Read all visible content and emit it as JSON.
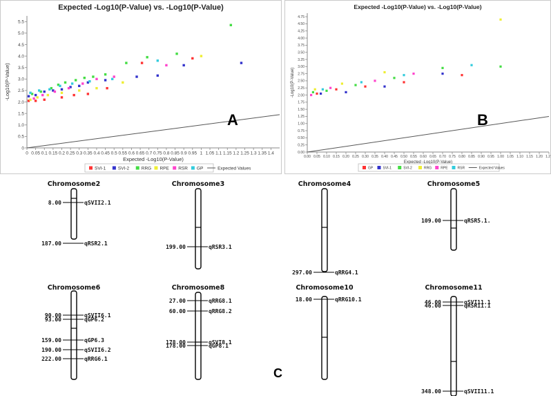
{
  "chart_data": [
    {
      "type": "scatter",
      "title": "Expected -Log10(P-Value) vs. -Log10(P-Value)",
      "panel_letter": "A",
      "xlabel": "Expected -Log10(P-Value)",
      "ylabel": "-Log10(P-Value)",
      "xlim": [
        0,
        1.45
      ],
      "ylim": [
        0,
        5.75
      ],
      "xticks": [
        "0",
        "0.05",
        "0.1",
        "0.15",
        "0.2",
        "0.25",
        "0.3",
        "0.35",
        "0.4",
        "0.45",
        "0.5",
        "0.55",
        "0.6",
        "0.65",
        "0.7",
        "0.75",
        "0.8",
        "0.85",
        "0.9",
        "0.95",
        "1",
        "1.05",
        "1.1",
        "1.15",
        "1.2",
        "1.25",
        "1.3",
        "1.35",
        "1.4"
      ],
      "yticks": [
        "0",
        "0.5",
        "1.0",
        "1.5",
        "2.0",
        "2.5",
        "3.0",
        "3.5",
        "4.0",
        "4.5",
        "5.0",
        "5.5"
      ],
      "grid": false,
      "legend_position": "bottom",
      "series": [
        {
          "name": "SVI-1",
          "color": "#ff3333",
          "points": [
            [
              0.01,
              2.05
            ],
            [
              0.05,
              2.05
            ],
            [
              0.1,
              2.1
            ],
            [
              0.2,
              2.2
            ],
            [
              0.27,
              2.3
            ],
            [
              0.35,
              2.35
            ],
            [
              0.46,
              2.6
            ],
            [
              0.66,
              3.7
            ],
            [
              0.95,
              3.9
            ]
          ]
        },
        {
          "name": "SVI-2",
          "color": "#3333cc",
          "points": [
            [
              0.01,
              2.25
            ],
            [
              0.05,
              2.3
            ],
            [
              0.1,
              2.45
            ],
            [
              0.15,
              2.5
            ],
            [
              0.2,
              2.55
            ],
            [
              0.25,
              2.65
            ],
            [
              0.3,
              2.7
            ],
            [
              0.35,
              2.85
            ],
            [
              0.45,
              2.95
            ],
            [
              0.63,
              3.1
            ],
            [
              0.75,
              3.15
            ],
            [
              0.9,
              3.6
            ],
            [
              1.23,
              3.7
            ]
          ]
        },
        {
          "name": "RRG",
          "color": "#44dd44",
          "points": [
            [
              0.03,
              2.35
            ],
            [
              0.08,
              2.45
            ],
            [
              0.14,
              2.6
            ],
            [
              0.18,
              2.75
            ],
            [
              0.22,
              2.85
            ],
            [
              0.28,
              2.95
            ],
            [
              0.33,
              3.05
            ],
            [
              0.38,
              3.1
            ],
            [
              0.45,
              3.2
            ],
            [
              0.57,
              3.7
            ],
            [
              0.69,
              3.95
            ],
            [
              0.86,
              4.1
            ],
            [
              1.17,
              5.35
            ]
          ]
        },
        {
          "name": "RPE",
          "color": "#eeee33",
          "points": [
            [
              0.02,
              2.1
            ],
            [
              0.06,
              2.2
            ],
            [
              0.12,
              2.3
            ],
            [
              0.2,
              2.4
            ],
            [
              0.3,
              2.5
            ],
            [
              0.4,
              2.6
            ],
            [
              0.55,
              2.85
            ],
            [
              1.0,
              4.0
            ]
          ]
        },
        {
          "name": "RSR",
          "color": "#ff44cc",
          "points": [
            [
              0.04,
              2.15
            ],
            [
              0.09,
              2.3
            ],
            [
              0.16,
              2.45
            ],
            [
              0.24,
              2.6
            ],
            [
              0.32,
              2.8
            ],
            [
              0.4,
              3.0
            ],
            [
              0.5,
              3.1
            ],
            [
              0.8,
              3.6
            ]
          ]
        },
        {
          "name": "GP",
          "color": "#33ccdd",
          "points": [
            [
              0.02,
              2.4
            ],
            [
              0.07,
              2.5
            ],
            [
              0.13,
              2.55
            ],
            [
              0.19,
              2.7
            ],
            [
              0.26,
              2.8
            ],
            [
              0.36,
              2.9
            ],
            [
              0.49,
              3.0
            ],
            [
              0.75,
              3.8
            ]
          ]
        },
        {
          "name": "Expected Values",
          "color": "#555555",
          "type": "line",
          "points": [
            [
              0,
              0
            ],
            [
              1.45,
              1.45
            ]
          ]
        }
      ]
    },
    {
      "type": "scatter",
      "title": "Expected -Log10(P-Value) vs. -Log10(P-Value)",
      "panel_letter": "B",
      "xlabel": "Expected -Log10(P-Value)",
      "ylabel": "-Log10(P-Value)",
      "xlim": [
        0,
        1.25
      ],
      "ylim": [
        0,
        4.875
      ],
      "xticks": [
        "0.00",
        "0.05",
        "0.10",
        "0.15",
        "0.20",
        "0.25",
        "0.30",
        "0.35",
        "0.40",
        "0.45",
        "0.50",
        "0.55",
        "0.60",
        "0.65",
        "0.70",
        "0.75",
        "0.80",
        "0.85",
        "0.90",
        "0.95",
        "1.00",
        "1.05",
        "1.10",
        "1.15",
        "1.20",
        "1.25"
      ],
      "yticks": [
        "0.00",
        "0.25",
        "0.50",
        "0.75",
        "1.00",
        "1.25",
        "1.50",
        "1.75",
        "2.00",
        "2.25",
        "2.50",
        "2.75",
        "3.00",
        "3.25",
        "3.50",
        "3.75",
        "4.00",
        "4.25",
        "4.50",
        "4.75"
      ],
      "grid": false,
      "legend_position": "bottom",
      "series": [
        {
          "name": "GP",
          "color": "#ff3333",
          "points": [
            [
              0.05,
              2.05
            ],
            [
              0.15,
              2.2
            ],
            [
              0.3,
              2.3
            ],
            [
              0.5,
              2.45
            ],
            [
              0.8,
              2.7
            ]
          ]
        },
        {
          "name": "SVI-1",
          "color": "#3333cc",
          "points": [
            [
              0.07,
              2.05
            ],
            [
              0.2,
              2.1
            ],
            [
              0.4,
              2.3
            ],
            [
              0.7,
              2.75
            ]
          ]
        },
        {
          "name": "SVI-2",
          "color": "#44dd44",
          "points": [
            [
              0.03,
              2.1
            ],
            [
              0.1,
              2.15
            ],
            [
              0.25,
              2.35
            ],
            [
              0.45,
              2.6
            ],
            [
              0.7,
              2.95
            ],
            [
              1.0,
              3.0
            ]
          ]
        },
        {
          "name": "RRG",
          "color": "#eeee33",
          "points": [
            [
              0.04,
              2.2
            ],
            [
              0.18,
              2.4
            ],
            [
              0.4,
              2.8
            ],
            [
              1.0,
              4.65
            ]
          ]
        },
        {
          "name": "RPE",
          "color": "#ff44cc",
          "points": [
            [
              0.02,
              2.0
            ],
            [
              0.12,
              2.25
            ],
            [
              0.35,
              2.5
            ],
            [
              0.55,
              2.75
            ]
          ]
        },
        {
          "name": "RSR",
          "color": "#33ccdd",
          "points": [
            [
              0.08,
              2.2
            ],
            [
              0.28,
              2.45
            ],
            [
              0.5,
              2.7
            ],
            [
              0.85,
              3.05
            ]
          ]
        },
        {
          "name": "Expected Values",
          "color": "#555555",
          "type": "line",
          "points": [
            [
              0,
              0
            ],
            [
              1.25,
              1.25
            ]
          ]
        }
      ]
    }
  ],
  "panel_c": {
    "letter": "C",
    "chromosomes": [
      {
        "name": "Chromosome2",
        "loci": [
          {
            "pos": "8.00",
            "qtl": "qSVII2.1"
          },
          {
            "pos": "187.00",
            "qtl": "qRSR2.1"
          }
        ]
      },
      {
        "name": "Chromosome3",
        "loci": [
          {
            "pos": "199.00",
            "qtl": "qRSR3.1"
          }
        ]
      },
      {
        "name": "Chromosome4",
        "loci": [
          {
            "pos": "297.00",
            "qtl": "qRRG4.1"
          }
        ]
      },
      {
        "name": "Chromosome5",
        "loci": [
          {
            "pos": "109.00",
            "qtl": "qRSR5.1."
          }
        ]
      },
      {
        "name": "Chromosome6",
        "loci": [
          {
            "pos": "90.00",
            "qtl": "qSVII6.1"
          },
          {
            "pos": "93.00",
            "qtl": "qGP6.2"
          },
          {
            "pos": "159.00",
            "qtl": "qGP6.3"
          },
          {
            "pos": "190.00",
            "qtl": "qSVII6.2"
          },
          {
            "pos": "222.00",
            "qtl": "qRRG6.1"
          }
        ]
      },
      {
        "name": "Chromosome8",
        "loci": [
          {
            "pos": "27.00",
            "qtl": "qRRG8.1"
          },
          {
            "pos": "60.00",
            "qtl": "qRRG8.2"
          },
          {
            "pos": "178.00",
            "qtl": "qSVI8.1"
          },
          {
            "pos": "178.00",
            "qtl": "qGP8.1"
          }
        ]
      },
      {
        "name": "Chromosome10",
        "loci": [
          {
            "pos": "18.00",
            "qtl": "qRRG10.1"
          }
        ]
      },
      {
        "name": "Chromosome11",
        "loci": [
          {
            "pos": "46.00",
            "qtl": "qSVI11.1"
          },
          {
            "pos": "46.00",
            "qtl": "qRSR11.1"
          },
          {
            "pos": "348.00",
            "qtl": "qSVII11.1"
          }
        ]
      }
    ]
  }
}
